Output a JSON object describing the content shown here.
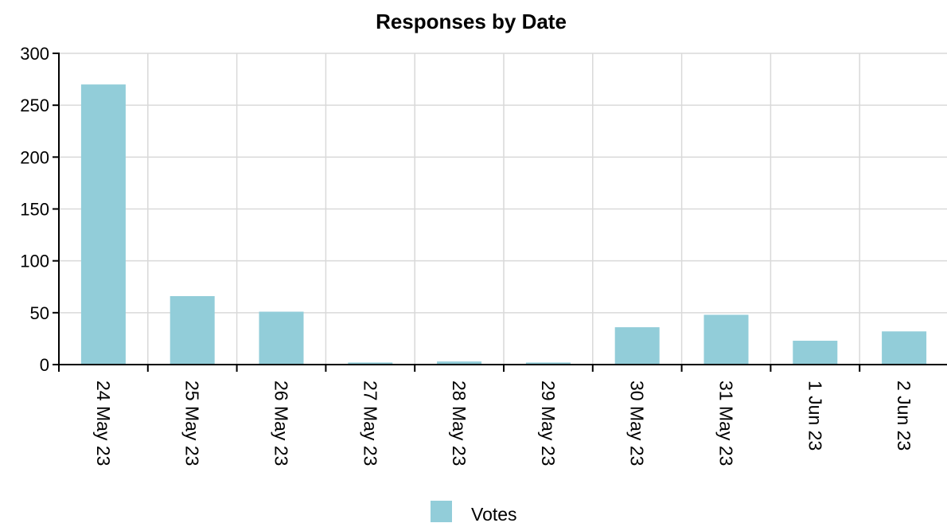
{
  "chart_data": {
    "type": "bar",
    "title": "Responses by Date",
    "xlabel": "",
    "ylabel": "",
    "categories": [
      "24 May 23",
      "25 May 23",
      "26 May 23",
      "27 May 23",
      "28 May 23",
      "29 May 23",
      "30 May 23",
      "31 May 23",
      "1 Jun 23",
      "2 Jun 23"
    ],
    "series": [
      {
        "name": "Votes",
        "color": "#92cdd9",
        "values": [
          270,
          66,
          51,
          2,
          3,
          2,
          36,
          48,
          23,
          32
        ]
      }
    ],
    "ylim": [
      0,
      300
    ],
    "yticks": [
      0,
      50,
      100,
      150,
      200,
      250,
      300
    ],
    "grid": true,
    "legend": "bottom"
  }
}
